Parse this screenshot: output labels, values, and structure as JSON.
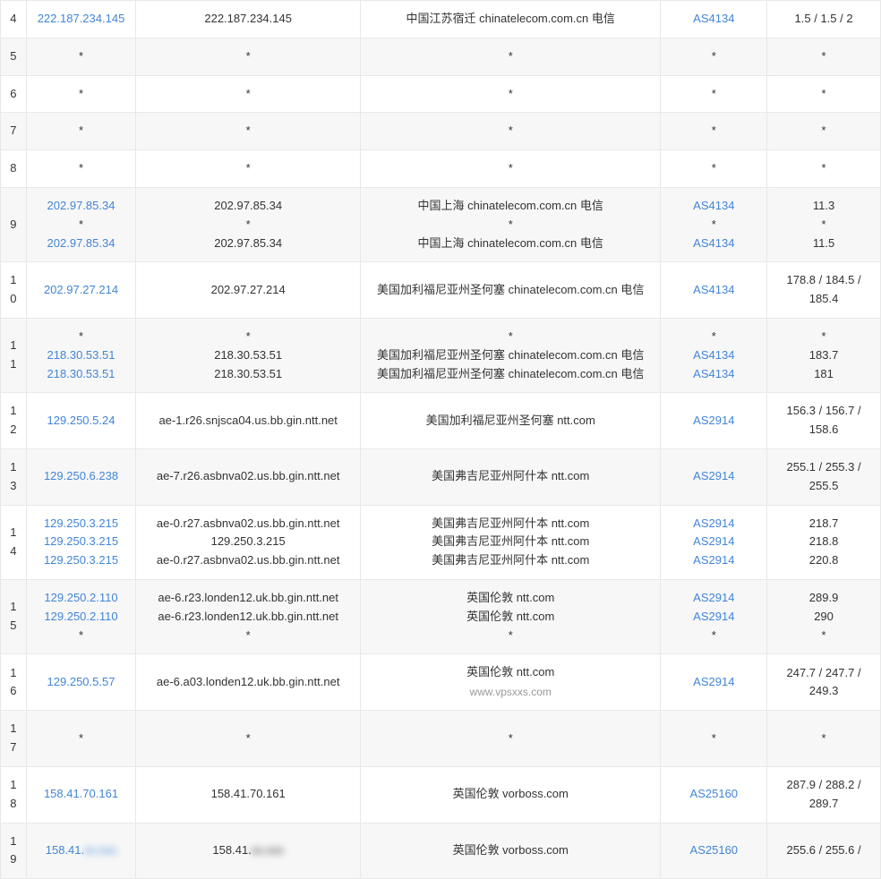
{
  "watermark": "www.vpsxxs.com",
  "rows": [
    {
      "hop": "4",
      "ips": [
        {
          "t": "222.187.234.145",
          "link": true
        }
      ],
      "hosts": [
        {
          "t": "222.187.234.145"
        }
      ],
      "locs": [
        {
          "t": "中国江苏宿迁 chinatelecom.com.cn 电信"
        }
      ],
      "as": [
        {
          "t": "AS4134",
          "link": true
        }
      ],
      "lat": [
        {
          "t": "1.5 / 1.5 / 2"
        }
      ]
    },
    {
      "hop": "5",
      "ips": [
        {
          "t": "*"
        }
      ],
      "hosts": [
        {
          "t": "*"
        }
      ],
      "locs": [
        {
          "t": "*"
        }
      ],
      "as": [
        {
          "t": "*"
        }
      ],
      "lat": [
        {
          "t": "*"
        }
      ]
    },
    {
      "hop": "6",
      "ips": [
        {
          "t": "*"
        }
      ],
      "hosts": [
        {
          "t": "*"
        }
      ],
      "locs": [
        {
          "t": "*"
        }
      ],
      "as": [
        {
          "t": "*"
        }
      ],
      "lat": [
        {
          "t": "*"
        }
      ]
    },
    {
      "hop": "7",
      "ips": [
        {
          "t": "*"
        }
      ],
      "hosts": [
        {
          "t": "*"
        }
      ],
      "locs": [
        {
          "t": "*"
        }
      ],
      "as": [
        {
          "t": "*"
        }
      ],
      "lat": [
        {
          "t": "*"
        }
      ]
    },
    {
      "hop": "8",
      "ips": [
        {
          "t": "*"
        }
      ],
      "hosts": [
        {
          "t": "*"
        }
      ],
      "locs": [
        {
          "t": "*"
        }
      ],
      "as": [
        {
          "t": "*"
        }
      ],
      "lat": [
        {
          "t": "*"
        }
      ]
    },
    {
      "hop": "9",
      "ips": [
        {
          "t": "202.97.85.34",
          "link": true
        },
        {
          "t": "*"
        },
        {
          "t": "202.97.85.34",
          "link": true
        }
      ],
      "hosts": [
        {
          "t": "202.97.85.34"
        },
        {
          "t": "*"
        },
        {
          "t": "202.97.85.34"
        }
      ],
      "locs": [
        {
          "t": "中国上海 chinatelecom.com.cn 电信"
        },
        {
          "t": "*"
        },
        {
          "t": "中国上海 chinatelecom.com.cn 电信"
        }
      ],
      "as": [
        {
          "t": "AS4134",
          "link": true
        },
        {
          "t": "*"
        },
        {
          "t": "AS4134",
          "link": true
        }
      ],
      "lat": [
        {
          "t": "11.3"
        },
        {
          "t": "*"
        },
        {
          "t": "11.5"
        }
      ]
    },
    {
      "hop": "10",
      "ips": [
        {
          "t": "202.97.27.214",
          "link": true
        }
      ],
      "hosts": [
        {
          "t": "202.97.27.214"
        }
      ],
      "locs": [
        {
          "t": "美国加利福尼亚州圣何塞 chinatelecom.com.cn 电信"
        }
      ],
      "as": [
        {
          "t": "AS4134",
          "link": true
        }
      ],
      "lat": [
        {
          "t": "178.8 / 184.5 / 185.4"
        }
      ]
    },
    {
      "hop": "11",
      "ips": [
        {
          "t": "*"
        },
        {
          "t": "218.30.53.51",
          "link": true
        },
        {
          "t": "218.30.53.51",
          "link": true
        }
      ],
      "hosts": [
        {
          "t": "*"
        },
        {
          "t": "218.30.53.51"
        },
        {
          "t": "218.30.53.51"
        }
      ],
      "locs": [
        {
          "t": "*"
        },
        {
          "t": "美国加利福尼亚州圣何塞 chinatelecom.com.cn 电信"
        },
        {
          "t": "美国加利福尼亚州圣何塞 chinatelecom.com.cn 电信"
        }
      ],
      "as": [
        {
          "t": "*"
        },
        {
          "t": "AS4134",
          "link": true
        },
        {
          "t": "AS4134",
          "link": true
        }
      ],
      "lat": [
        {
          "t": "*"
        },
        {
          "t": "183.7"
        },
        {
          "t": "181"
        }
      ]
    },
    {
      "hop": "12",
      "ips": [
        {
          "t": "129.250.5.24",
          "link": true
        }
      ],
      "hosts": [
        {
          "t": "ae-1.r26.snjsca04.us.bb.gin.ntt.net"
        }
      ],
      "locs": [
        {
          "t": "美国加利福尼亚州圣何塞 ntt.com"
        }
      ],
      "as": [
        {
          "t": "AS2914",
          "link": true
        }
      ],
      "lat": [
        {
          "t": "156.3 / 156.7 / 158.6"
        }
      ]
    },
    {
      "hop": "13",
      "ips": [
        {
          "t": "129.250.6.238",
          "link": true
        }
      ],
      "hosts": [
        {
          "t": "ae-7.r26.asbnva02.us.bb.gin.ntt.net"
        }
      ],
      "locs": [
        {
          "t": "美国弗吉尼亚州阿什本 ntt.com"
        }
      ],
      "as": [
        {
          "t": "AS2914",
          "link": true
        }
      ],
      "lat": [
        {
          "t": "255.1 / 255.3 / 255.5"
        }
      ]
    },
    {
      "hop": "14",
      "ips": [
        {
          "t": "129.250.3.215",
          "link": true
        },
        {
          "t": "129.250.3.215",
          "link": true
        },
        {
          "t": "129.250.3.215",
          "link": true
        }
      ],
      "hosts": [
        {
          "t": "ae-0.r27.asbnva02.us.bb.gin.ntt.net"
        },
        {
          "t": "129.250.3.215"
        },
        {
          "t": "ae-0.r27.asbnva02.us.bb.gin.ntt.net"
        }
      ],
      "locs": [
        {
          "t": "美国弗吉尼亚州阿什本 ntt.com"
        },
        {
          "t": "美国弗吉尼亚州阿什本 ntt.com"
        },
        {
          "t": "美国弗吉尼亚州阿什本 ntt.com"
        }
      ],
      "as": [
        {
          "t": "AS2914",
          "link": true
        },
        {
          "t": "AS2914",
          "link": true
        },
        {
          "t": "AS2914",
          "link": true
        }
      ],
      "lat": [
        {
          "t": "218.7"
        },
        {
          "t": "218.8"
        },
        {
          "t": "220.8"
        }
      ]
    },
    {
      "hop": "15",
      "ips": [
        {
          "t": "129.250.2.110",
          "link": true
        },
        {
          "t": "129.250.2.110",
          "link": true
        },
        {
          "t": "*"
        }
      ],
      "hosts": [
        {
          "t": "ae-6.r23.londen12.uk.bb.gin.ntt.net"
        },
        {
          "t": "ae-6.r23.londen12.uk.bb.gin.ntt.net"
        },
        {
          "t": "*"
        }
      ],
      "locs": [
        {
          "t": "英国伦敦 ntt.com"
        },
        {
          "t": "英国伦敦 ntt.com"
        },
        {
          "t": "*"
        }
      ],
      "as": [
        {
          "t": "AS2914",
          "link": true
        },
        {
          "t": "AS2914",
          "link": true
        },
        {
          "t": "*"
        }
      ],
      "lat": [
        {
          "t": "289.9"
        },
        {
          "t": "290"
        },
        {
          "t": "*"
        }
      ]
    },
    {
      "hop": "16",
      "ips": [
        {
          "t": "129.250.5.57",
          "link": true
        }
      ],
      "hosts": [
        {
          "t": "ae-6.a03.londen12.uk.bb.gin.ntt.net"
        }
      ],
      "locs": [
        {
          "t": "英国伦敦 ntt.com"
        }
      ],
      "as": [
        {
          "t": "AS2914",
          "link": true
        }
      ],
      "lat": [
        {
          "t": "247.7 / 247.7 / 249.3"
        }
      ],
      "watermarkBelowLoc": true
    },
    {
      "hop": "17",
      "ips": [
        {
          "t": "*"
        }
      ],
      "hosts": [
        {
          "t": "*"
        }
      ],
      "locs": [
        {
          "t": "*"
        }
      ],
      "as": [
        {
          "t": "*"
        }
      ],
      "lat": [
        {
          "t": "*"
        }
      ]
    },
    {
      "hop": "18",
      "ips": [
        {
          "t": "158.41.70.161",
          "link": true
        }
      ],
      "hosts": [
        {
          "t": "158.41.70.161"
        }
      ],
      "locs": [
        {
          "t": "英国伦敦 vorboss.com"
        }
      ],
      "as": [
        {
          "t": "AS25160",
          "link": true
        }
      ],
      "lat": [
        {
          "t": "287.9 / 288.2 / 289.7"
        }
      ]
    },
    {
      "hop": "19",
      "ips": [
        {
          "t": "158.41.",
          "link": true,
          "blurSuffix": "xx.xxx"
        }
      ],
      "hosts": [
        {
          "t": "158.41.",
          "blurSuffix": "xx.xxx"
        }
      ],
      "locs": [
        {
          "t": "英国伦敦 vorboss.com"
        }
      ],
      "as": [
        {
          "t": "AS25160",
          "link": true
        }
      ],
      "lat": [
        {
          "t": "255.6 / 255.6 /"
        }
      ]
    }
  ]
}
